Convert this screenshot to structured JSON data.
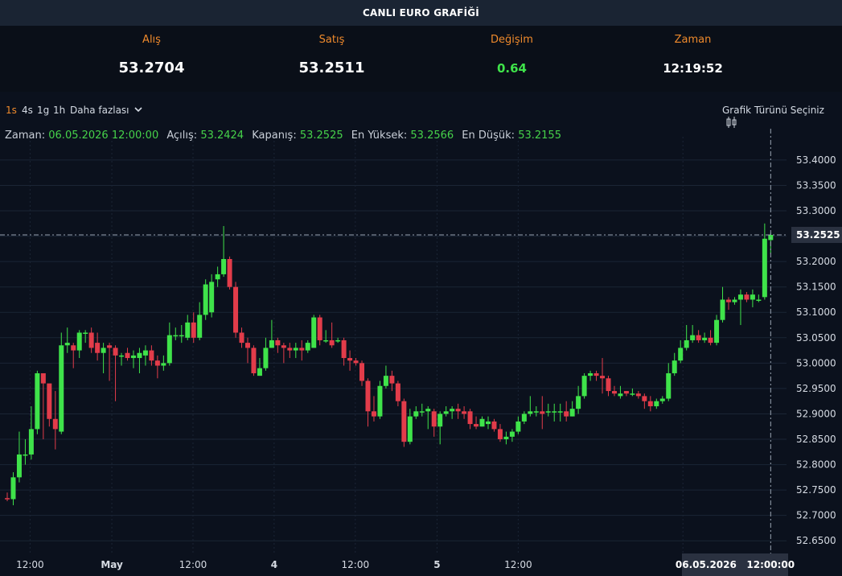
{
  "header": {
    "title": "CANLI EURO GRAFİĞİ"
  },
  "quote": {
    "bid_label": "Alış",
    "bid_value": "53.2704",
    "ask_label": "Satış",
    "ask_value": "53.2511",
    "change_label": "Değişim",
    "change_value": "0.64",
    "time_label": "Zaman",
    "time_value": "12:19:52"
  },
  "toolbar": {
    "timeframes": [
      "1s",
      "4s",
      "1g",
      "1h"
    ],
    "active_timeframe": "1s",
    "more_label": "Daha fazlası",
    "chart_type_label": "Grafik Türünü Seçiniz"
  },
  "ohlc": {
    "time_label": "Zaman:",
    "time_value": "06.05.2026 12:00:00",
    "open_label": "Açılış:",
    "open_value": "53.2424",
    "close_label": "Kapanış:",
    "close_value": "53.2525",
    "high_label": "En Yüksek:",
    "high_value": "53.2566",
    "low_label": "En Düşük:",
    "low_value": "53.2155"
  },
  "crosshair": {
    "time_badge": "06.05.2026   12:00:00",
    "price_badge": "53.2525"
  },
  "colors": {
    "up": "#3fe34a",
    "down": "#e23c4a",
    "accent": "#ef8a2c",
    "background": "#0b111d",
    "grid": "#1b2535"
  },
  "chart_data": {
    "type": "candlestick",
    "y_ticks": [
      "53.4000",
      "53.3500",
      "53.3000",
      "53.2500",
      "53.2000",
      "53.1500",
      "53.1000",
      "53.0500",
      "53.0000",
      "52.9500",
      "52.9000",
      "52.8500",
      "52.8000",
      "52.7500",
      "52.7000",
      "52.6500"
    ],
    "ylim": [
      52.625,
      53.43
    ],
    "x_ticks": [
      {
        "label": "12:00",
        "index": 3.8
      },
      {
        "label": "May",
        "index": 17.4
      },
      {
        "label": "12:00",
        "index": 30.9
      },
      {
        "label": "4",
        "index": 44.4
      },
      {
        "label": "12:00",
        "index": 57.9
      },
      {
        "label": "5",
        "index": 71.5
      },
      {
        "label": "12:00",
        "index": 85.0
      },
      {
        "label": "12:00",
        "index": 112.4
      }
    ],
    "candles": [
      [
        52.734,
        52.732,
        52.745,
        52.728
      ],
      [
        52.732,
        52.775,
        52.785,
        52.72
      ],
      [
        52.775,
        52.82,
        52.865,
        52.765
      ],
      [
        52.82,
        52.82,
        52.85,
        52.8
      ],
      [
        52.82,
        52.87,
        52.915,
        52.81
      ],
      [
        52.87,
        52.98,
        52.985,
        52.86
      ],
      [
        52.98,
        52.96,
        52.975,
        52.85
      ],
      [
        52.96,
        52.89,
        52.945,
        52.875
      ],
      [
        52.89,
        52.87,
        52.945,
        52.83
      ],
      [
        52.865,
        53.035,
        53.06,
        52.86
      ],
      [
        53.035,
        53.04,
        53.07,
        53.02
      ],
      [
        53.035,
        53.025,
        53.04,
        52.99
      ],
      [
        53.025,
        53.06,
        53.065,
        53.01
      ],
      [
        53.06,
        53.06,
        53.065,
        53.04
      ],
      [
        53.06,
        53.03,
        53.07,
        53.02
      ],
      [
        53.04,
        53.02,
        53.06,
        53.005
      ],
      [
        53.02,
        53.03,
        53.04,
        52.98
      ],
      [
        53.035,
        53.03,
        53.04,
        52.965
      ],
      [
        53.03,
        53.015,
        53.035,
        52.925
      ],
      [
        53.015,
        53.015,
        53.02,
        52.995
      ],
      [
        53.02,
        53.01,
        53.03,
        53.005
      ],
      [
        53.01,
        53.015,
        53.025,
        52.99
      ],
      [
        53.01,
        53.02,
        53.03,
        52.98
      ],
      [
        53.015,
        53.025,
        53.035,
        52.995
      ],
      [
        53.025,
        53.005,
        53.035,
        52.995
      ],
      [
        53.005,
        52.995,
        53.015,
        52.97
      ],
      [
        52.995,
        53.0,
        53.015,
        52.985
      ],
      [
        53.0,
        53.055,
        53.08,
        52.995
      ],
      [
        53.055,
        53.055,
        53.07,
        53.045
      ],
      [
        53.055,
        53.055,
        53.075,
        53.04
      ],
      [
        53.05,
        53.08,
        53.095,
        53.045
      ],
      [
        53.08,
        53.05,
        53.1,
        53.04
      ],
      [
        53.05,
        53.095,
        53.12,
        53.045
      ],
      [
        53.095,
        53.155,
        53.165,
        53.085
      ],
      [
        53.1,
        53.16,
        53.175,
        53.09
      ],
      [
        53.165,
        53.175,
        53.19,
        53.15
      ],
      [
        53.175,
        53.205,
        53.27,
        53.17
      ],
      [
        53.205,
        53.15,
        53.21,
        53.145
      ],
      [
        53.15,
        53.06,
        53.16,
        53.05
      ],
      [
        53.06,
        53.04,
        53.07,
        53.03
      ],
      [
        53.04,
        53.03,
        53.05,
        53.0
      ],
      [
        53.03,
        52.98,
        53.035,
        52.975
      ],
      [
        52.975,
        52.99,
        53.01,
        52.975
      ],
      [
        52.99,
        53.03,
        53.05,
        52.985
      ],
      [
        53.03,
        53.045,
        53.085,
        53.03
      ],
      [
        53.045,
        53.035,
        53.05,
        53.02
      ],
      [
        53.035,
        53.03,
        53.04,
        53.0
      ],
      [
        53.03,
        53.025,
        53.04,
        53.01
      ],
      [
        53.025,
        53.03,
        53.04,
        53.01
      ],
      [
        53.03,
        53.025,
        53.045,
        53.005
      ],
      [
        53.025,
        53.04,
        53.045,
        53.02
      ],
      [
        53.03,
        53.09,
        53.095,
        53.03
      ],
      [
        53.09,
        53.045,
        53.095,
        53.035
      ],
      [
        53.045,
        53.045,
        53.065,
        53.04
      ],
      [
        53.045,
        53.035,
        53.08,
        53.03
      ],
      [
        53.045,
        53.045,
        53.05,
        53.04
      ],
      [
        53.045,
        53.01,
        53.05,
        52.995
      ],
      [
        53.01,
        53.005,
        53.025,
        52.985
      ],
      [
        53.005,
        53.0,
        53.01,
        52.995
      ],
      [
        53.0,
        52.965,
        53.005,
        52.955
      ],
      [
        52.965,
        52.905,
        52.97,
        52.875
      ],
      [
        52.905,
        52.895,
        52.935,
        52.885
      ],
      [
        52.895,
        52.955,
        52.965,
        52.89
      ],
      [
        52.955,
        52.975,
        52.995,
        52.95
      ],
      [
        52.975,
        52.96,
        52.985,
        52.945
      ],
      [
        52.96,
        52.925,
        52.965,
        52.915
      ],
      [
        52.925,
        52.845,
        52.93,
        52.835
      ],
      [
        52.845,
        52.895,
        52.91,
        52.84
      ],
      [
        52.895,
        52.905,
        52.915,
        52.89
      ],
      [
        52.905,
        52.905,
        52.92,
        52.895
      ],
      [
        52.905,
        52.91,
        52.915,
        52.87
      ],
      [
        52.905,
        52.875,
        52.91,
        52.855
      ],
      [
        52.875,
        52.9,
        52.905,
        52.84
      ],
      [
        52.9,
        52.905,
        52.915,
        52.895
      ],
      [
        52.905,
        52.91,
        52.915,
        52.89
      ],
      [
        52.91,
        52.905,
        52.92,
        52.89
      ],
      [
        52.905,
        52.9,
        52.915,
        52.89
      ],
      [
        52.905,
        52.88,
        52.91,
        52.87
      ],
      [
        52.88,
        52.875,
        52.895,
        52.87
      ],
      [
        52.875,
        52.89,
        52.895,
        52.875
      ],
      [
        52.88,
        52.885,
        52.895,
        52.87
      ],
      [
        52.885,
        52.87,
        52.89,
        52.865
      ],
      [
        52.87,
        52.85,
        52.88,
        52.845
      ],
      [
        52.85,
        52.855,
        52.865,
        52.84
      ],
      [
        52.855,
        52.865,
        52.87,
        52.845
      ],
      [
        52.865,
        52.885,
        52.895,
        52.86
      ],
      [
        52.885,
        52.9,
        52.905,
        52.88
      ],
      [
        52.9,
        52.905,
        52.935,
        52.895
      ],
      [
        52.905,
        52.905,
        52.915,
        52.895
      ],
      [
        52.905,
        52.9,
        52.935,
        52.87
      ],
      [
        52.905,
        52.905,
        52.92,
        52.895
      ],
      [
        52.905,
        52.905,
        52.92,
        52.885
      ],
      [
        52.905,
        52.905,
        52.92,
        52.885
      ],
      [
        52.905,
        52.895,
        52.925,
        52.885
      ],
      [
        52.895,
        52.91,
        52.925,
        52.895
      ],
      [
        52.91,
        52.935,
        52.955,
        52.9
      ],
      [
        52.935,
        52.975,
        52.98,
        52.93
      ],
      [
        52.975,
        52.98,
        52.985,
        52.965
      ],
      [
        52.98,
        52.975,
        52.985,
        52.965
      ],
      [
        52.975,
        52.97,
        53.01,
        52.94
      ],
      [
        52.97,
        52.945,
        52.975,
        52.935
      ],
      [
        52.945,
        52.94,
        52.955,
        52.935
      ],
      [
        52.935,
        52.94,
        52.955,
        52.93
      ],
      [
        52.945,
        52.94,
        52.945,
        52.935
      ],
      [
        52.94,
        52.94,
        52.95,
        52.935
      ],
      [
        52.94,
        52.935,
        52.945,
        52.93
      ],
      [
        52.935,
        52.925,
        52.94,
        52.91
      ],
      [
        52.925,
        52.915,
        52.935,
        52.905
      ],
      [
        52.915,
        52.925,
        52.93,
        52.91
      ],
      [
        52.925,
        52.93,
        52.935,
        52.92
      ],
      [
        52.93,
        52.98,
        53.0,
        52.925
      ],
      [
        52.98,
        53.005,
        53.02,
        52.975
      ],
      [
        53.005,
        53.03,
        53.045,
        53.0
      ],
      [
        53.03,
        53.045,
        53.075,
        53.025
      ],
      [
        53.045,
        53.055,
        53.075,
        53.04
      ],
      [
        53.055,
        53.045,
        53.065,
        53.04
      ],
      [
        53.045,
        53.05,
        53.06,
        53.04
      ],
      [
        53.05,
        53.04,
        53.065,
        53.035
      ],
      [
        53.04,
        53.085,
        53.095,
        53.035
      ],
      [
        53.085,
        53.125,
        53.15,
        53.08
      ],
      [
        53.125,
        53.12,
        53.13,
        53.105
      ],
      [
        53.12,
        53.125,
        53.13,
        53.115
      ],
      [
        53.125,
        53.135,
        53.145,
        53.075
      ],
      [
        53.135,
        53.125,
        53.14,
        53.12
      ],
      [
        53.125,
        53.135,
        53.145,
        53.11
      ],
      [
        53.125,
        53.125,
        53.135,
        53.12
      ],
      [
        53.13,
        53.245,
        53.275,
        53.125
      ],
      [
        53.2424,
        53.2525,
        53.2566,
        53.2155
      ]
    ]
  }
}
